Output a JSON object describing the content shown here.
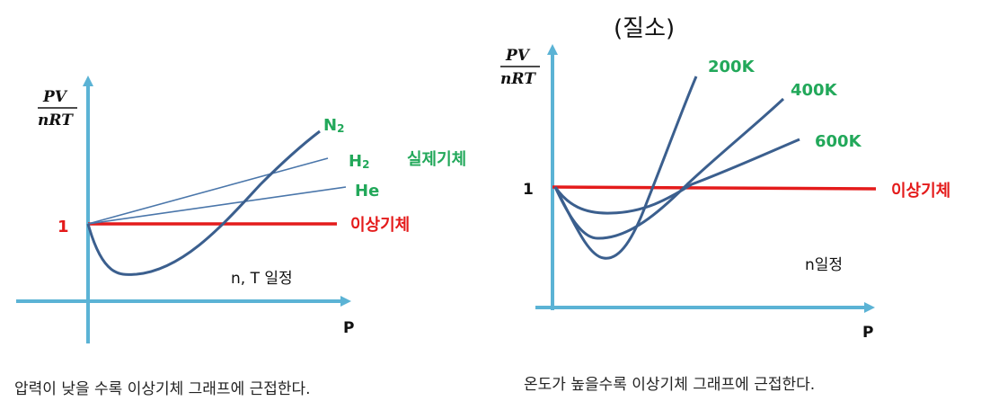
{
  "left": {
    "ylabel_num": "PV",
    "ylabel_den": "nRT",
    "xlabel": "P",
    "one": "1",
    "n2": "N",
    "n2_sub": "2",
    "h2": "H",
    "h2_sub": "2",
    "he": "He",
    "real_gas": "실제기체",
    "ideal_gas": "이상기체",
    "condition": "n, T 일정",
    "caption": "압력이 낮을 수록 이상기체 그래프에 근접한다."
  },
  "right": {
    "title": "(질소)",
    "ylabel_num": "PV",
    "ylabel_den": "nRT",
    "xlabel": "P",
    "one": "1",
    "t200": "200K",
    "t400": "400K",
    "t600": "600K",
    "ideal_gas": "이상기체",
    "condition": "n일정",
    "caption": "온도가 높을수록 이상기체 그래프에 근접한다."
  },
  "colors": {
    "axis": "#5bb3d5",
    "curve": "#3b5f8e",
    "ideal": "#e41b1b",
    "label_green": "#22a85a"
  }
}
